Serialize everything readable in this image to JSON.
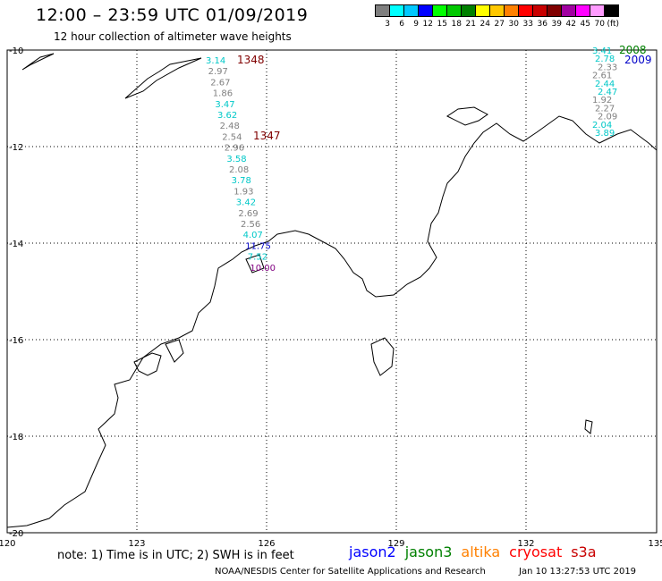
{
  "title": "12:00 – 23:59 UTC 01/09/2019",
  "subtitle": "12 hour collection of altimeter wave heights",
  "colorbar": {
    "colors": [
      "#7f7f7f",
      "#00ffff",
      "#00c8ff",
      "#0000ff",
      "#00ff00",
      "#00c800",
      "#008000",
      "#ffff00",
      "#ffc800",
      "#ff8000",
      "#ff0000",
      "#c80000",
      "#800000",
      "#a000a0",
      "#ff00ff",
      "#ff9bff",
      "#000000"
    ],
    "labels": [
      "3",
      "6",
      "9",
      "12",
      "15",
      "18",
      "21",
      "24",
      "27",
      "30",
      "33",
      "36",
      "39",
      "42",
      "45",
      "70",
      "(ft)"
    ]
  },
  "axes": {
    "lon_ticks": [
      "120",
      "123",
      "126",
      "129",
      "132",
      "135"
    ],
    "lat_ticks": [
      "-10",
      "-12",
      "-14",
      "-16",
      "-18",
      "-20"
    ]
  },
  "tracks": [
    {
      "id": "1348",
      "color": "#800000",
      "label_color": "#800000"
    },
    {
      "id": "1347",
      "color": "#800000",
      "label_color": "#800000"
    },
    {
      "id": "2008",
      "color": "#008000",
      "label_color": "#008000"
    },
    {
      "id": "2009",
      "color": "#0000c8",
      "label_color": "#0000c8"
    }
  ],
  "readings": [
    {
      "v": "3.14",
      "c": "#00c8c8"
    },
    {
      "v": "2.97",
      "c": "#808080"
    },
    {
      "v": "2.67",
      "c": "#808080"
    },
    {
      "v": "1.86",
      "c": "#808080"
    },
    {
      "v": "3.47",
      "c": "#00c8c8"
    },
    {
      "v": "3.62",
      "c": "#00c8c8"
    },
    {
      "v": "2.48",
      "c": "#808080"
    },
    {
      "v": "2.54",
      "c": "#808080"
    },
    {
      "v": "2.96",
      "c": "#808080"
    },
    {
      "v": "3.58",
      "c": "#00c8c8"
    },
    {
      "v": "2.08",
      "c": "#808080"
    },
    {
      "v": "3.78",
      "c": "#00c8c8"
    },
    {
      "v": "1.93",
      "c": "#808080"
    },
    {
      "v": "3.42",
      "c": "#00c8c8"
    },
    {
      "v": "2.69",
      "c": "#808080"
    },
    {
      "v": "2.56",
      "c": "#808080"
    },
    {
      "v": "4.07",
      "c": "#00c8c8"
    },
    {
      "v": "11.75",
      "c": "#0000c8"
    },
    {
      "v": "7.52",
      "c": "#00c8c8"
    },
    {
      "v": "10.00",
      "c": "#800080"
    }
  ],
  "readings_east": [
    {
      "v": "3.41",
      "c": "#00c8c8"
    },
    {
      "v": "2.78",
      "c": "#00c8c8"
    },
    {
      "v": "2.33",
      "c": "#808080"
    },
    {
      "v": "2.61",
      "c": "#808080"
    },
    {
      "v": "2.44",
      "c": "#00c8c8"
    },
    {
      "v": "2.47",
      "c": "#00c8c8"
    },
    {
      "v": "1.92",
      "c": "#808080"
    },
    {
      "v": "2.27",
      "c": "#808080"
    },
    {
      "v": "2.09",
      "c": "#808080"
    },
    {
      "v": "2.04",
      "c": "#00c8c8"
    },
    {
      "v": "3.89",
      "c": "#00c8c8"
    }
  ],
  "note": "note: 1) Time is in UTC; 2) SWH is in feet",
  "satellites": [
    {
      "name": "jason2",
      "color": "#0000ff"
    },
    {
      "name": "jason3",
      "color": "#008000"
    },
    {
      "name": "altika",
      "color": "#ff8000"
    },
    {
      "name": "cryosat",
      "color": "#ff0000"
    },
    {
      "name": "s3a",
      "color": "#c80000"
    }
  ],
  "credit": "NOAA/NESDIS Center for Satellite Applications and Research",
  "timestamp": "Jan 10 13:27:53 UTC 2019"
}
